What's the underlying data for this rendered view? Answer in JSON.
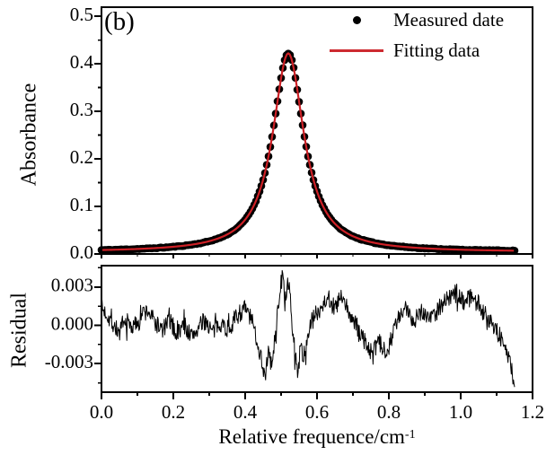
{
  "figure": {
    "panel_label": "(b)",
    "background": "#ffffff",
    "colors": {
      "data_points": "#000000",
      "fit_line": "#cd2026",
      "residual_trace": "#000000",
      "axis": "#000000"
    },
    "legend": [
      {
        "marker": "dot-icon",
        "label": "Measured date"
      },
      {
        "marker": "line-icon",
        "label": "Fitting data"
      }
    ]
  },
  "x_axis": {
    "title_base": "Relative frequence/cm",
    "title_sup": "-1",
    "lim": [
      0.0,
      1.2
    ],
    "ticks": [
      {
        "v": 0.0,
        "label": "0.0"
      },
      {
        "v": 0.2,
        "label": "0.2"
      },
      {
        "v": 0.4,
        "label": "0.4"
      },
      {
        "v": 0.6,
        "label": "0.6"
      },
      {
        "v": 0.8,
        "label": "0.8"
      },
      {
        "v": 1.0,
        "label": "1.0"
      },
      {
        "v": 1.2,
        "label": "1.2"
      }
    ],
    "minor_ticks": [
      0.1,
      0.3,
      0.5,
      0.7,
      0.9,
      1.1
    ]
  },
  "chart_data": [
    {
      "type": "scatter",
      "panel": "top",
      "ylabel": "Absorbance",
      "ylim": [
        0.0,
        0.519
      ],
      "xlim": [
        0.0,
        1.2
      ],
      "grid": false,
      "legend_position": "top-right",
      "yticks": [
        {
          "v": 0.5,
          "label": "0.5"
        },
        {
          "v": 0.4,
          "label": "0.4"
        },
        {
          "v": 0.3,
          "label": "0.3"
        },
        {
          "v": 0.2,
          "label": "0.2"
        },
        {
          "v": 0.1,
          "label": "0.1"
        },
        {
          "v": 0.0,
          "label": "0.0"
        }
      ],
      "yminor": [
        0.05,
        0.15,
        0.25,
        0.35,
        0.45
      ],
      "series": [
        {
          "name": "Measured date",
          "type": "scatter",
          "model": "lorentzian",
          "baseline": 0.004,
          "amplitude": 0.418,
          "center": 0.52,
          "hwhm": 0.053,
          "x_start": 0.0,
          "x_end": 1.15,
          "x_step": 0.005,
          "noise": 0.0007,
          "seed": 11,
          "peak_value": 0.422
        },
        {
          "name": "Fitting data",
          "type": "line",
          "model": "lorentzian",
          "baseline": 0.004,
          "amplitude": 0.418,
          "center": 0.52,
          "hwhm": 0.053,
          "x_start": 0.0,
          "x_end": 1.15,
          "x_step": 0.004
        }
      ]
    },
    {
      "type": "line",
      "panel": "bottom",
      "ylabel": "Residual",
      "ylim_milli": [
        -5.23,
        4.67
      ],
      "xlim": [
        0.0,
        1.2
      ],
      "grid": false,
      "yticks": [
        {
          "v_milli": 3,
          "label": "0.003"
        },
        {
          "v_milli": 0,
          "label": "0.000"
        },
        {
          "v_milli": -3,
          "label": "-0.003"
        }
      ],
      "yminor_milli": [
        4.5,
        1.5,
        -1.5,
        -4.5
      ],
      "series": [
        {
          "name": "Residual",
          "x_start": 0.0,
          "x_end": 1.15,
          "n_points": 750,
          "noise_milli": 0.75,
          "seed": 7,
          "mean_points_milli": [
            [
              0.0,
              1.3
            ],
            [
              0.015,
              0.9
            ],
            [
              0.03,
              0.2
            ],
            [
              0.05,
              -0.6
            ],
            [
              0.07,
              0.3
            ],
            [
              0.09,
              -0.2
            ],
            [
              0.11,
              0.9
            ],
            [
              0.13,
              1.1
            ],
            [
              0.15,
              0.2
            ],
            [
              0.17,
              -0.4
            ],
            [
              0.19,
              0.4
            ],
            [
              0.21,
              -0.7
            ],
            [
              0.23,
              0.1
            ],
            [
              0.25,
              -0.9
            ],
            [
              0.27,
              -0.2
            ],
            [
              0.29,
              0.4
            ],
            [
              0.31,
              -0.6
            ],
            [
              0.33,
              0.3
            ],
            [
              0.35,
              -0.3
            ],
            [
              0.37,
              0.4
            ],
            [
              0.385,
              1.0
            ],
            [
              0.4,
              1.3
            ],
            [
              0.415,
              0.6
            ],
            [
              0.43,
              -0.8
            ],
            [
              0.445,
              -2.6
            ],
            [
              0.455,
              -4.0
            ],
            [
              0.465,
              -2.2
            ],
            [
              0.475,
              -3.2
            ],
            [
              0.485,
              -0.5
            ],
            [
              0.495,
              2.4
            ],
            [
              0.503,
              3.8
            ],
            [
              0.512,
              2.2
            ],
            [
              0.52,
              3.2
            ],
            [
              0.528,
              1.0
            ],
            [
              0.535,
              -1.2
            ],
            [
              0.545,
              -3.6
            ],
            [
              0.555,
              -1.8
            ],
            [
              0.565,
              -2.6
            ],
            [
              0.575,
              -0.6
            ],
            [
              0.59,
              0.6
            ],
            [
              0.61,
              1.4
            ],
            [
              0.63,
              2.3
            ],
            [
              0.65,
              1.2
            ],
            [
              0.665,
              2.2
            ],
            [
              0.68,
              1.5
            ],
            [
              0.7,
              0.4
            ],
            [
              0.72,
              -0.6
            ],
            [
              0.74,
              -1.6
            ],
            [
              0.755,
              -2.4
            ],
            [
              0.77,
              -1.2
            ],
            [
              0.785,
              -2.0
            ],
            [
              0.8,
              -1.6
            ],
            [
              0.815,
              -0.2
            ],
            [
              0.83,
              0.6
            ],
            [
              0.85,
              1.3
            ],
            [
              0.87,
              0.4
            ],
            [
              0.89,
              1.2
            ],
            [
              0.91,
              0.6
            ],
            [
              0.93,
              1.0
            ],
            [
              0.95,
              1.8
            ],
            [
              0.97,
              2.2
            ],
            [
              0.99,
              2.5
            ],
            [
              1.01,
              1.9
            ],
            [
              1.03,
              2.3
            ],
            [
              1.05,
              1.6
            ],
            [
              1.07,
              0.8
            ],
            [
              1.09,
              0.2
            ],
            [
              1.1,
              -0.4
            ],
            [
              1.115,
              -1.2
            ],
            [
              1.13,
              -2.2
            ],
            [
              1.14,
              -3.2
            ],
            [
              1.15,
              -4.6
            ]
          ]
        }
      ]
    }
  ]
}
